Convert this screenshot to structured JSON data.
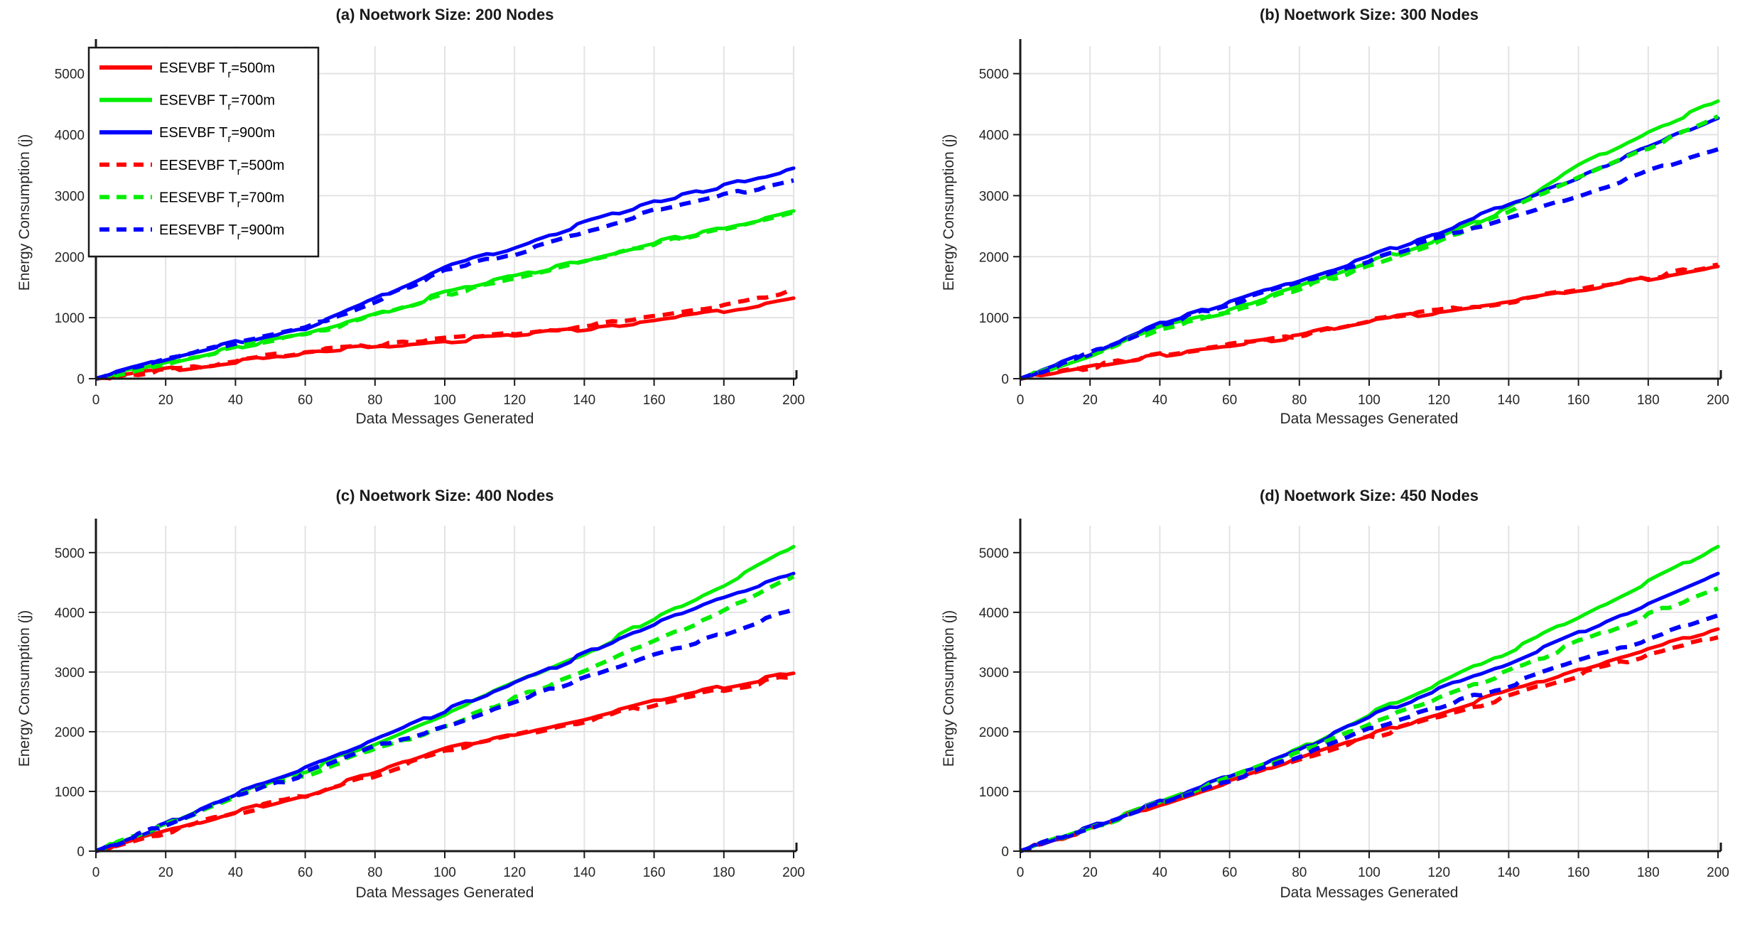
{
  "figure": {
    "background": "#FFFFFF",
    "text_color": "#262626",
    "axis_color": "#1a1a1a",
    "grid_color": "#E3E3E3",
    "accent_colors": {
      "red": "#FF0000",
      "green": "#00EE00",
      "blue": "#0000FF"
    }
  },
  "legend": {
    "shown_on_panel": 0,
    "entries": [
      {
        "main": "ESEVBF T",
        "sub": "r",
        "rest": "=500m",
        "color": "#FF0000",
        "dash": false
      },
      {
        "main": "ESEVBF T",
        "sub": "r",
        "rest": "=700m",
        "color": "#00EE00",
        "dash": false
      },
      {
        "main": "ESEVBF T",
        "sub": "r",
        "rest": "=900m",
        "color": "#0000FF",
        "dash": false
      },
      {
        "main": "EESEVBF  T",
        "sub": "r",
        "rest": "=500m",
        "color": "#FF0000",
        "dash": true
      },
      {
        "main": "EESEVBF  T",
        "sub": "r",
        "rest": "=700m",
        "color": "#00EE00",
        "dash": true
      },
      {
        "main": "EESEVBF  T",
        "sub": "r",
        "rest": "=900m",
        "color": "#0000FF",
        "dash": true
      }
    ]
  },
  "chart_data": [
    {
      "type": "line",
      "title": "(a) Noetwork Size: 200 Nodes",
      "xlabel": "Data Messages Generated",
      "ylabel": "Energy Consumption (j)",
      "xlim": [
        0,
        200
      ],
      "ylim": [
        0,
        5450
      ],
      "xticks": [
        0,
        20,
        40,
        60,
        80,
        100,
        120,
        140,
        160,
        180,
        200
      ],
      "yticks": [
        0,
        1000,
        2000,
        3000,
        4000,
        5000
      ],
      "grid": true,
      "legend_position": "top-left",
      "x": [
        0,
        20,
        40,
        60,
        80,
        100,
        120,
        140,
        160,
        180,
        200
      ],
      "series": [
        {
          "name": "ESEVBF Tr=500m",
          "color": "#FF0000",
          "dash": false,
          "values": [
            0,
            140,
            280,
            430,
            520,
            610,
            700,
            810,
            950,
            1100,
            1320
          ]
        },
        {
          "name": "ESEVBF Tr=700m",
          "color": "#00EE00",
          "dash": false,
          "values": [
            0,
            260,
            520,
            740,
            1050,
            1400,
            1680,
            1950,
            2220,
            2480,
            2750
          ]
        },
        {
          "name": "ESEVBF Tr=900m",
          "color": "#0000FF",
          "dash": false,
          "values": [
            0,
            320,
            600,
            830,
            1300,
            1850,
            2150,
            2550,
            2900,
            3150,
            3450
          ]
        },
        {
          "name": "EESEVBF Tr=500m",
          "color": "#FF0000",
          "dash": true,
          "values": [
            0,
            145,
            290,
            440,
            540,
            640,
            740,
            870,
            1020,
            1200,
            1450
          ]
        },
        {
          "name": "EESEVBF Tr=700m",
          "color": "#00EE00",
          "dash": true,
          "values": [
            0,
            250,
            505,
            725,
            1030,
            1375,
            1655,
            1925,
            2195,
            2455,
            2725
          ]
        },
        {
          "name": "EESEVBF Tr=900m",
          "color": "#0000FF",
          "dash": true,
          "values": [
            0,
            310,
            590,
            820,
            1280,
            1780,
            2050,
            2400,
            2750,
            3000,
            3250
          ]
        }
      ]
    },
    {
      "type": "line",
      "title": "(b) Noetwork Size: 300 Nodes",
      "xlabel": "Data Messages Generated",
      "ylabel": "Energy Consumption (j)",
      "xlim": [
        0,
        200
      ],
      "ylim": [
        0,
        5450
      ],
      "xticks": [
        0,
        20,
        40,
        60,
        80,
        100,
        120,
        140,
        160,
        180,
        200
      ],
      "yticks": [
        0,
        1000,
        2000,
        3000,
        4000,
        5000
      ],
      "grid": true,
      "x": [
        0,
        20,
        40,
        60,
        80,
        100,
        120,
        140,
        160,
        180,
        200
      ],
      "series": [
        {
          "name": "ESEVBF Tr=500m",
          "color": "#FF0000",
          "dash": false,
          "values": [
            0,
            190,
            380,
            540,
            700,
            950,
            1100,
            1250,
            1430,
            1640,
            1840
          ]
        },
        {
          "name": "ESEVBF Tr=700m",
          "color": "#00EE00",
          "dash": false,
          "values": [
            0,
            380,
            850,
            1100,
            1500,
            1900,
            2300,
            2800,
            3500,
            4050,
            4550
          ]
        },
        {
          "name": "ESEVBF Tr=900m",
          "color": "#0000FF",
          "dash": false,
          "values": [
            0,
            420,
            900,
            1250,
            1620,
            2000,
            2400,
            2850,
            3300,
            3800,
            4270
          ]
        },
        {
          "name": "EESEVBF Tr=500m",
          "color": "#FF0000",
          "dash": true,
          "values": [
            0,
            195,
            390,
            550,
            710,
            960,
            1120,
            1270,
            1450,
            1660,
            1870
          ]
        },
        {
          "name": "EESEVBF Tr=700m",
          "color": "#00EE00",
          "dash": true,
          "values": [
            0,
            370,
            830,
            1080,
            1470,
            1860,
            2250,
            2750,
            3300,
            3800,
            4300
          ]
        },
        {
          "name": "EESEVBF Tr=900m",
          "color": "#0000FF",
          "dash": true,
          "values": [
            0,
            410,
            880,
            1220,
            1580,
            1950,
            2300,
            2650,
            3000,
            3400,
            3760
          ]
        }
      ]
    },
    {
      "type": "line",
      "title": "(c) Noetwork Size: 400 Nodes",
      "xlabel": "Data Messages Generated",
      "ylabel": "Energy Consumption (j)",
      "xlim": [
        0,
        200
      ],
      "ylim": [
        0,
        5450
      ],
      "xticks": [
        0,
        20,
        40,
        60,
        80,
        100,
        120,
        140,
        160,
        180,
        200
      ],
      "yticks": [
        0,
        1000,
        2000,
        3000,
        4000,
        5000
      ],
      "grid": true,
      "x": [
        0,
        20,
        40,
        60,
        80,
        100,
        120,
        140,
        160,
        180,
        200
      ],
      "series": [
        {
          "name": "ESEVBF Tr=500m",
          "color": "#FF0000",
          "dash": false,
          "values": [
            0,
            330,
            650,
            950,
            1300,
            1700,
            1950,
            2200,
            2500,
            2750,
            2980
          ]
        },
        {
          "name": "ESEVBF Tr=700m",
          "color": "#00EE00",
          "dash": false,
          "values": [
            0,
            450,
            950,
            1350,
            1800,
            2300,
            2800,
            3300,
            3900,
            4450,
            5100
          ]
        },
        {
          "name": "ESEVBF Tr=900m",
          "color": "#0000FF",
          "dash": false,
          "values": [
            0,
            460,
            970,
            1380,
            1850,
            2350,
            2800,
            3300,
            3800,
            4250,
            4650
          ]
        },
        {
          "name": "EESEVBF Tr=500m",
          "color": "#FF0000",
          "dash": true,
          "values": [
            0,
            320,
            640,
            930,
            1280,
            1680,
            1920,
            2170,
            2460,
            2700,
            2930
          ]
        },
        {
          "name": "EESEVBF Tr=700m",
          "color": "#00EE00",
          "dash": true,
          "values": [
            0,
            440,
            900,
            1280,
            1700,
            2100,
            2550,
            3000,
            3500,
            4000,
            4600
          ]
        },
        {
          "name": "EESEVBF Tr=900m",
          "color": "#0000FF",
          "dash": true,
          "values": [
            0,
            450,
            920,
            1300,
            1750,
            2100,
            2500,
            2900,
            3300,
            3650,
            4050
          ]
        }
      ]
    },
    {
      "type": "line",
      "title": "(d) Noetwork Size: 450 Nodes",
      "xlabel": "Data Messages Generated",
      "ylabel": "Energy Consumption (j)",
      "xlim": [
        0,
        200
      ],
      "ylim": [
        0,
        5450
      ],
      "xticks": [
        0,
        20,
        40,
        60,
        80,
        100,
        120,
        140,
        160,
        180,
        200
      ],
      "yticks": [
        0,
        1000,
        2000,
        3000,
        4000,
        5000
      ],
      "grid": true,
      "x": [
        0,
        20,
        40,
        60,
        80,
        100,
        120,
        140,
        160,
        180,
        200
      ],
      "series": [
        {
          "name": "ESEVBF Tr=500m",
          "color": "#FF0000",
          "dash": false,
          "values": [
            0,
            390,
            790,
            1180,
            1560,
            1950,
            2300,
            2680,
            3050,
            3400,
            3720
          ]
        },
        {
          "name": "ESEVBF Tr=700m",
          "color": "#00EE00",
          "dash": false,
          "values": [
            0,
            400,
            820,
            1250,
            1700,
            2300,
            2800,
            3350,
            3900,
            4500,
            5100
          ]
        },
        {
          "name": "ESEVBF Tr=900m",
          "color": "#0000FF",
          "dash": false,
          "values": [
            0,
            400,
            820,
            1250,
            1700,
            2250,
            2700,
            3150,
            3650,
            4150,
            4650
          ]
        },
        {
          "name": "EESEVBF Tr=500m",
          "color": "#FF0000",
          "dash": true,
          "values": [
            0,
            380,
            780,
            1160,
            1530,
            1900,
            2250,
            2600,
            2950,
            3300,
            3580
          ]
        },
        {
          "name": "EESEVBF Tr=700m",
          "color": "#00EE00",
          "dash": true,
          "values": [
            0,
            390,
            800,
            1220,
            1650,
            2150,
            2550,
            3000,
            3500,
            3950,
            4400
          ]
        },
        {
          "name": "EESEVBF Tr=900m",
          "color": "#0000FF",
          "dash": true,
          "values": [
            0,
            390,
            800,
            1200,
            1600,
            2050,
            2400,
            2780,
            3180,
            3550,
            3950
          ]
        }
      ]
    }
  ]
}
